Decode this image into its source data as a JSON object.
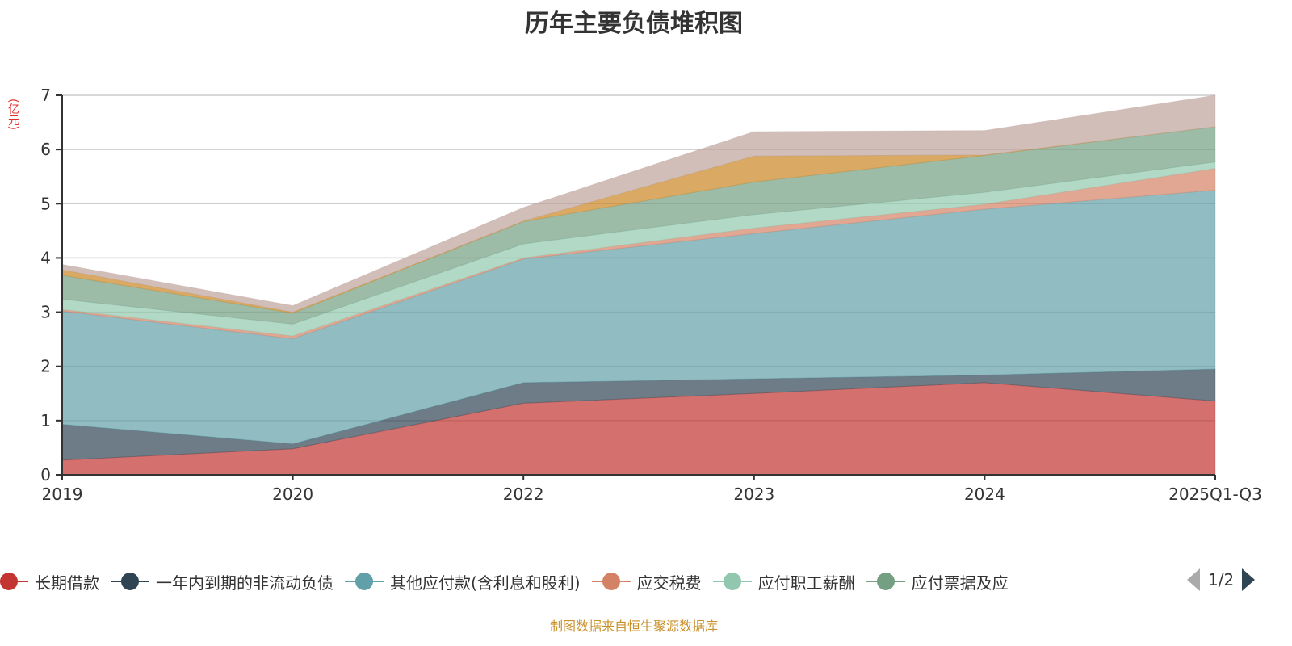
{
  "chart_data": {
    "type": "area",
    "stacked": true,
    "title": "历年主要负债堆积图",
    "ylabel": "(亿元)",
    "xlabel": "",
    "ylim": [
      0,
      7
    ],
    "yticks": [
      "0",
      "1",
      "2",
      "3",
      "4",
      "5",
      "6",
      "7"
    ],
    "categories": [
      "2019",
      "2020",
      "2022",
      "2023",
      "2024",
      "2025Q1-Q3"
    ],
    "grid": true,
    "legend_placement": "bottom",
    "legend_page": "1/2",
    "series": [
      {
        "name": "长期借款",
        "color": "#c23531",
        "values": [
          0.27,
          0.48,
          1.32,
          1.5,
          1.7,
          1.36
        ]
      },
      {
        "name": "一年内到期的非流动负债",
        "color": "#2f4554",
        "values": [
          0.66,
          0.09,
          0.38,
          0.27,
          0.14,
          0.59
        ]
      },
      {
        "name": "其他应付款(含利息和股利)",
        "color": "#61a0a8",
        "values": [
          2.09,
          1.94,
          2.28,
          2.68,
          3.06,
          3.3
        ]
      },
      {
        "name": "应交税费",
        "color": "#d48265",
        "values": [
          0.03,
          0.05,
          0.02,
          0.1,
          0.09,
          0.4
        ]
      },
      {
        "name": "应付职工薪酬",
        "color": "#91c7ae",
        "values": [
          0.19,
          0.22,
          0.26,
          0.25,
          0.22,
          0.12
        ]
      },
      {
        "name": "应付票据及应",
        "color": "#749f83",
        "values": [
          0.44,
          0.2,
          0.41,
          0.6,
          0.68,
          0.65
        ]
      },
      {
        "name": "",
        "color": "#ca8622",
        "values": [
          0.1,
          0.02,
          0.01,
          0.48,
          0.01,
          0.0
        ]
      },
      {
        "name": "",
        "color": "#bda29a",
        "values": [
          0.1,
          0.12,
          0.25,
          0.45,
          0.45,
          0.58
        ]
      }
    ]
  },
  "source": "制图数据来自恒生聚源数据库"
}
